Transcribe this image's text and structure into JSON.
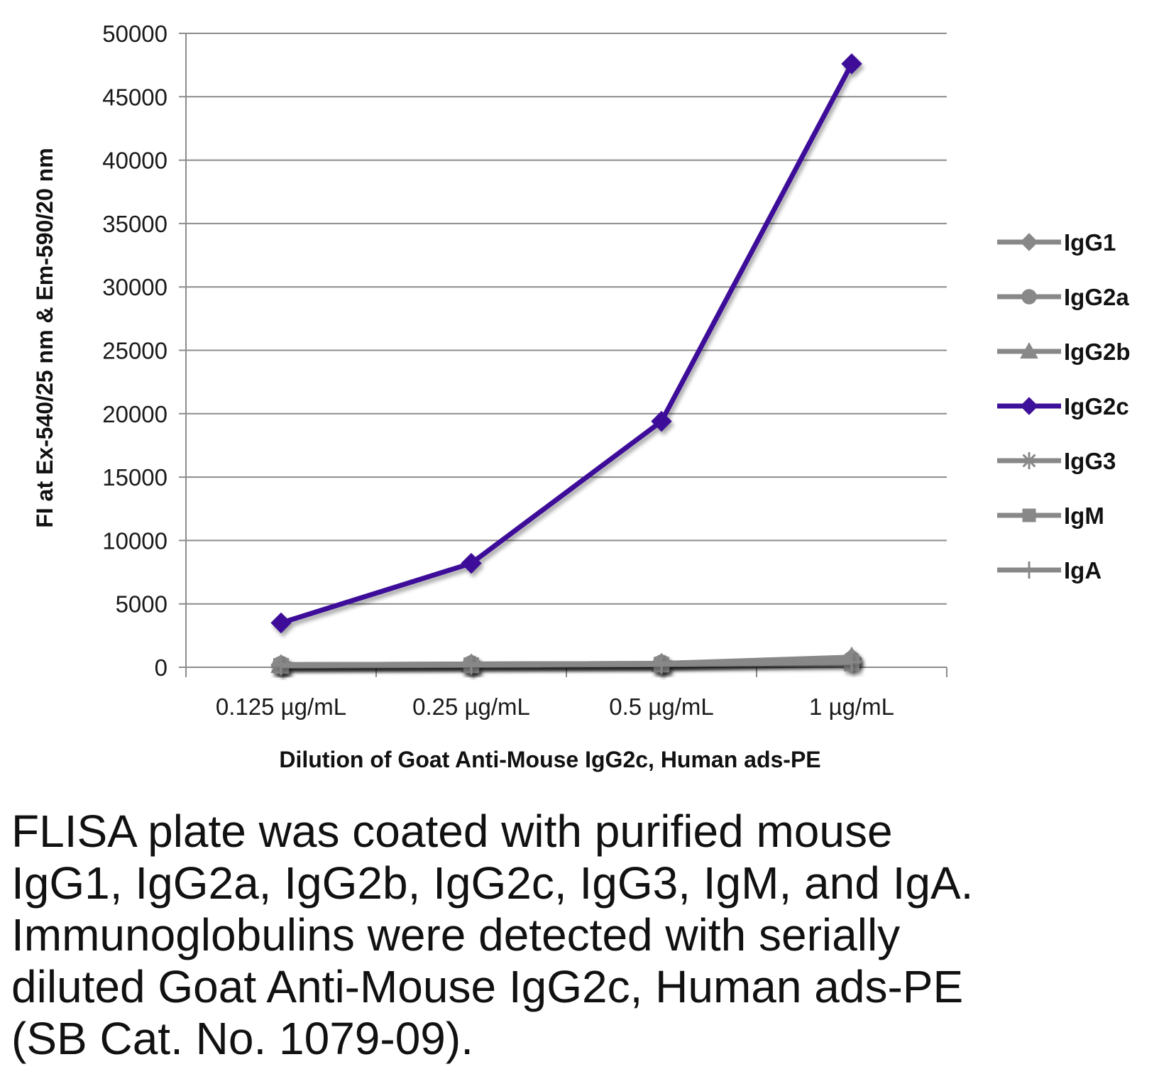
{
  "chart_data": {
    "type": "line",
    "categories": [
      "0.125 µg/mL",
      "0.25 µg/mL",
      "0.5 µg/mL",
      "1 µg/mL"
    ],
    "xlabel": "Dilution of Goat Anti-Mouse IgG2c, Human ads-PE",
    "ylabel": "FI at Ex-540/25 nm & Em-590/20 nm",
    "ylim": [
      0,
      50000
    ],
    "yticks": [
      0,
      5000,
      10000,
      15000,
      20000,
      25000,
      30000,
      35000,
      40000,
      45000,
      50000
    ],
    "grid": true,
    "legend_position": "right",
    "series": [
      {
        "name": "IgG1",
        "marker": "diamond",
        "color": "#888888",
        "values": [
          200,
          250,
          300,
          700
        ]
      },
      {
        "name": "IgG2a",
        "marker": "circle",
        "color": "#888888",
        "values": [
          200,
          250,
          300,
          600
        ]
      },
      {
        "name": "IgG2b",
        "marker": "triangle",
        "color": "#888888",
        "values": [
          200,
          250,
          300,
          800
        ]
      },
      {
        "name": "IgG2c",
        "marker": "diamond",
        "color": "#3d1199",
        "values": [
          3500,
          8200,
          19400,
          47600
        ]
      },
      {
        "name": "IgG3",
        "marker": "star",
        "color": "#888888",
        "values": [
          150,
          200,
          250,
          500
        ]
      },
      {
        "name": "IgM",
        "marker": "square",
        "color": "#888888",
        "values": [
          100,
          150,
          200,
          300
        ]
      },
      {
        "name": "IgA",
        "marker": "plus",
        "color": "#888888",
        "values": [
          150,
          200,
          250,
          400
        ]
      }
    ]
  },
  "caption": "FLISA plate was coated with purified mouse IgG1, IgG2a, IgG2b, IgG2c, IgG3, IgM, and IgA.  Immunoglobulins were detected with serially diluted Goat Anti-Mouse IgG2c, Human ads-PE (SB Cat. No. 1079-09)."
}
